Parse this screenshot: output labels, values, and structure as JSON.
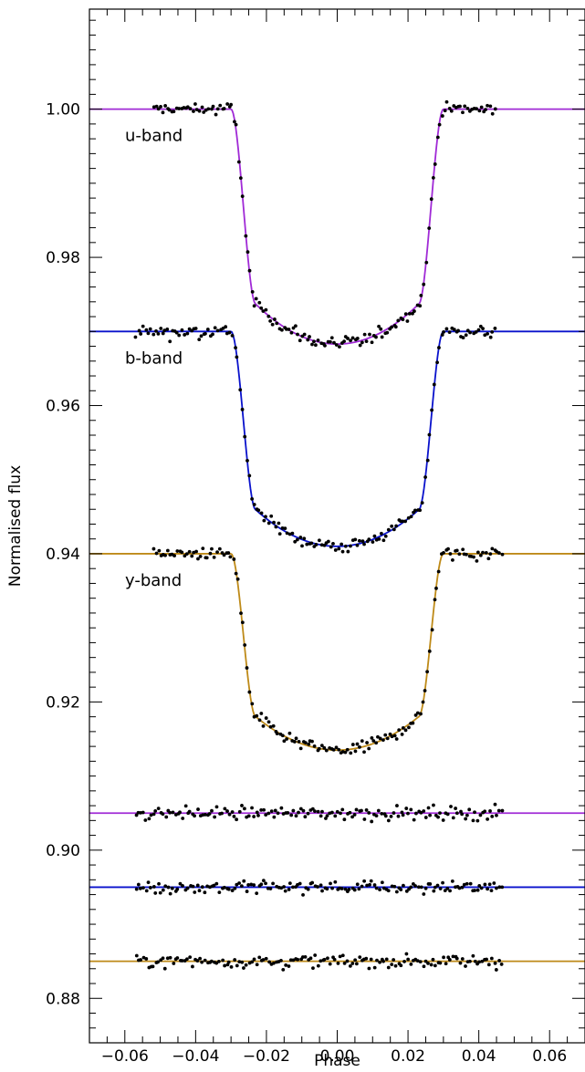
{
  "chart_data": {
    "type": "scatter",
    "title": "",
    "xlabel": "Phase",
    "ylabel": "Normalised flux",
    "xlim": [
      -0.07,
      0.07
    ],
    "ylim": [
      0.874,
      1.0135
    ],
    "x_ticks": [
      -0.06,
      -0.04,
      -0.02,
      0.0,
      0.02,
      0.04,
      0.06
    ],
    "x_tick_labels": [
      "−0.06",
      "−0.04",
      "−0.02",
      "0.00",
      "0.02",
      "0.04",
      "0.06"
    ],
    "y_ticks": [
      0.88,
      0.9,
      0.92,
      0.94,
      0.96,
      0.98,
      1.0
    ],
    "y_tick_labels": [
      "0.88",
      "0.90",
      "0.92",
      "0.94",
      "0.96",
      "0.98",
      "1.00"
    ],
    "grid": false,
    "series": [
      {
        "name": "u-band",
        "kind": "light-curve",
        "offset": 1.0,
        "depth": 0.0317,
        "contact_outer": 0.03,
        "contact_inner": 0.023,
        "color": "#a02ad6",
        "x_range": [
          -0.052,
          0.045
        ]
      },
      {
        "name": "b-band",
        "kind": "light-curve",
        "offset": 0.97,
        "depth": 0.029,
        "contact_outer": 0.03,
        "contact_inner": 0.023,
        "color": "#0a12cc",
        "x_range": [
          -0.057,
          0.045
        ]
      },
      {
        "name": "y-band",
        "kind": "light-curve",
        "offset": 0.94,
        "depth": 0.0265,
        "contact_outer": 0.03,
        "contact_inner": 0.023,
        "color": "#be8a18",
        "x_range": [
          -0.052,
          0.047
        ]
      },
      {
        "kind": "residuals",
        "offset": 0.905,
        "color": "#a02ad6",
        "x_range": [
          -0.057,
          0.047
        ]
      },
      {
        "kind": "residuals",
        "offset": 0.895,
        "color": "#0a12cc",
        "x_range": [
          -0.057,
          0.047
        ]
      },
      {
        "kind": "residuals",
        "offset": 0.885,
        "color": "#be8a18",
        "x_range": [
          -0.057,
          0.047
        ]
      }
    ]
  }
}
